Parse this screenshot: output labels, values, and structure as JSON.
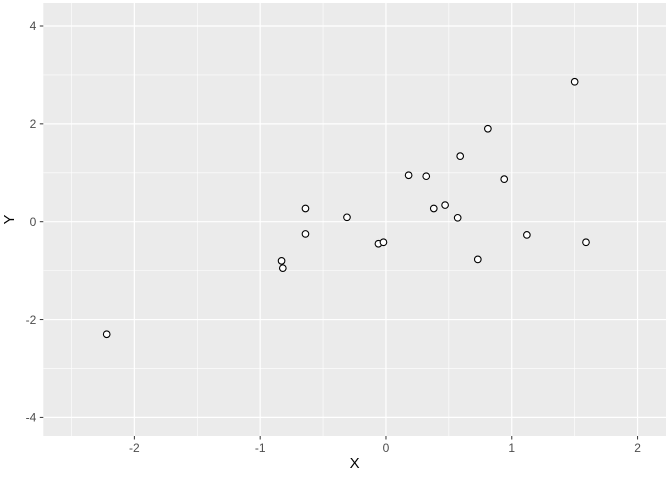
{
  "chart_data": {
    "type": "scatter",
    "title": "",
    "xlabel": "X",
    "ylabel": "Y",
    "xlim": [
      -2.724,
      2.226
    ],
    "ylim": [
      -4.38,
      4.47
    ],
    "x_ticks": [
      -2,
      -1,
      0,
      1,
      2
    ],
    "y_ticks": [
      -4,
      -2,
      0,
      2,
      4
    ],
    "x_minor_ticks": [
      -2.5,
      -1.5,
      -0.5,
      0.5,
      1.5
    ],
    "y_minor_ticks": [
      -3,
      -1,
      1,
      3
    ],
    "grid": "on",
    "legend": "none",
    "points": [
      [
        -2.22,
        -2.3
      ],
      [
        -0.83,
        -0.8
      ],
      [
        -0.82,
        -0.95
      ],
      [
        -0.64,
        0.27
      ],
      [
        -0.64,
        -0.25
      ],
      [
        -0.31,
        0.09
      ],
      [
        -0.06,
        -0.45
      ],
      [
        -0.02,
        -0.42
      ],
      [
        0.18,
        0.95
      ],
      [
        0.32,
        0.93
      ],
      [
        0.38,
        0.27
      ],
      [
        0.47,
        0.34
      ],
      [
        0.57,
        0.08
      ],
      [
        0.59,
        1.34
      ],
      [
        0.73,
        -0.77
      ],
      [
        0.81,
        1.9
      ],
      [
        0.94,
        0.87
      ],
      [
        1.12,
        -0.27
      ],
      [
        1.5,
        2.86
      ],
      [
        1.59,
        -0.42
      ]
    ]
  },
  "style": {
    "background": "#ffffff",
    "panel_bg": "#EBEBEB",
    "grid_color": "#FFFFFF",
    "point_stroke": "#000000",
    "point_fill": "#FFFFFF",
    "tick_mark_color": "#333333",
    "tick_label_color": "#4D4D4D",
    "axis_title_color": "#000000"
  }
}
